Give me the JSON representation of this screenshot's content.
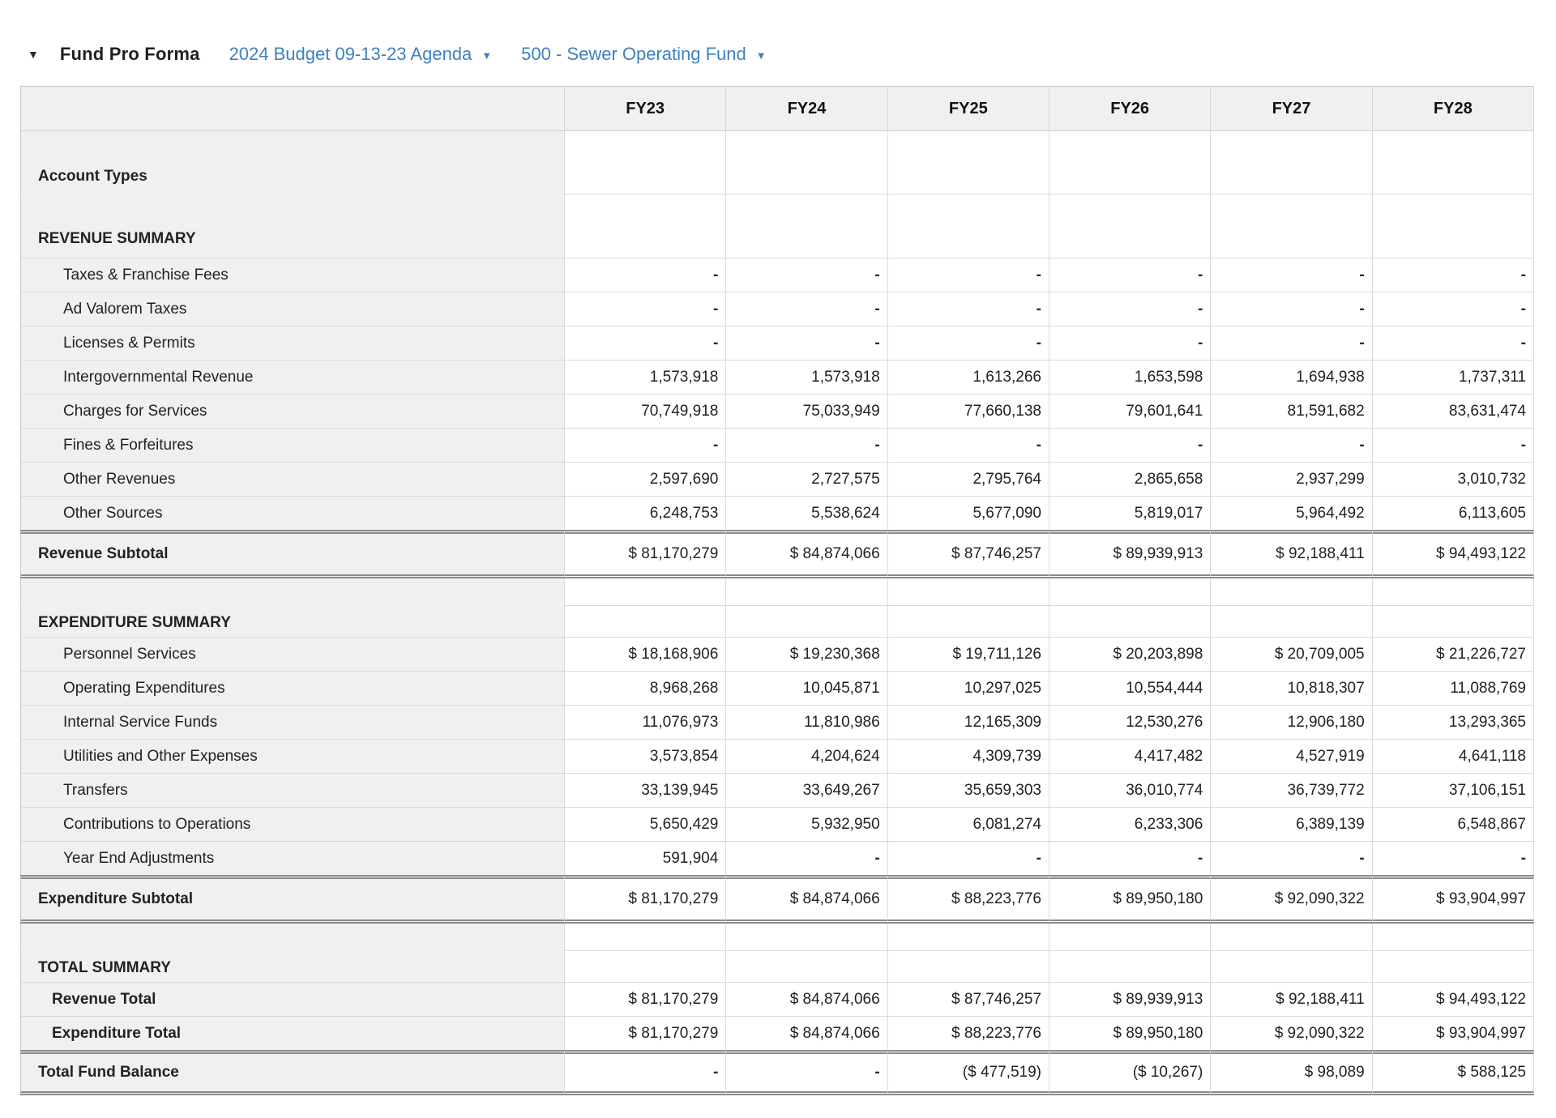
{
  "page": {
    "title": "Fund Pro Forma",
    "collapse_icon": "caret-down",
    "budget_dropdown": {
      "label": "2024 Budget 09-13-23 Agenda",
      "icon": "caret-down"
    },
    "fund_dropdown": {
      "label": "500 - Sewer Operating Fund",
      "icon": "caret-down"
    }
  },
  "colors": {
    "link_blue": "#4080bf",
    "label_column_bg": "#f0f0f0",
    "grid_line": "#dadada",
    "double_rule": "#8a8a8a"
  },
  "table": {
    "columns": [
      "FY23",
      "FY24",
      "FY25",
      "FY26",
      "FY27",
      "FY28"
    ],
    "rows": [
      {
        "type": "label-tall",
        "label": "Account Types",
        "values": [
          "",
          "",
          "",
          "",
          "",
          ""
        ]
      },
      {
        "type": "section-tall",
        "label": "REVENUE SUMMARY",
        "values": [
          "",
          "",
          "",
          "",
          "",
          ""
        ]
      },
      {
        "type": "item",
        "label": "Taxes & Franchise Fees",
        "values": [
          "-",
          "-",
          "-",
          "-",
          "-",
          "-"
        ]
      },
      {
        "type": "item",
        "label": "Ad Valorem Taxes",
        "values": [
          "-",
          "-",
          "-",
          "-",
          "-",
          "-"
        ]
      },
      {
        "type": "item",
        "label": "Licenses & Permits",
        "values": [
          "-",
          "-",
          "-",
          "-",
          "-",
          "-"
        ]
      },
      {
        "type": "item",
        "label": "Intergovernmental Revenue",
        "values": [
          "1,573,918",
          "1,573,918",
          "1,613,266",
          "1,653,598",
          "1,694,938",
          "1,737,311"
        ]
      },
      {
        "type": "item",
        "label": "Charges for Services",
        "values": [
          "70,749,918",
          "75,033,949",
          "77,660,138",
          "79,601,641",
          "81,591,682",
          "83,631,474"
        ]
      },
      {
        "type": "item",
        "label": "Fines & Forfeitures",
        "values": [
          "-",
          "-",
          "-",
          "-",
          "-",
          "-"
        ]
      },
      {
        "type": "item",
        "label": "Other Revenues",
        "values": [
          "2,597,690",
          "2,727,575",
          "2,795,764",
          "2,865,658",
          "2,937,299",
          "3,010,732"
        ]
      },
      {
        "type": "item",
        "label": "Other Sources",
        "values": [
          "6,248,753",
          "5,538,624",
          "5,677,090",
          "5,819,017",
          "5,964,492",
          "6,113,605"
        ]
      },
      {
        "type": "subtotal",
        "label": "Revenue Subtotal",
        "values": [
          "$ 81,170,279",
          "$ 84,874,066",
          "$ 87,746,257",
          "$ 89,939,913",
          "$ 92,188,411",
          "$ 94,493,122"
        ]
      },
      {
        "type": "spacer",
        "label": "",
        "values": [
          "",
          "",
          "",
          "",
          "",
          ""
        ]
      },
      {
        "type": "section",
        "label": "EXPENDITURE SUMMARY",
        "values": [
          "",
          "",
          "",
          "",
          "",
          ""
        ]
      },
      {
        "type": "item",
        "label": "Personnel Services",
        "values": [
          "$ 18,168,906",
          "$ 19,230,368",
          "$ 19,711,126",
          "$ 20,203,898",
          "$ 20,709,005",
          "$ 21,226,727"
        ]
      },
      {
        "type": "item",
        "label": "Operating Expenditures",
        "values": [
          "8,968,268",
          "10,045,871",
          "10,297,025",
          "10,554,444",
          "10,818,307",
          "11,088,769"
        ]
      },
      {
        "type": "item",
        "label": "Internal Service Funds",
        "values": [
          "11,076,973",
          "11,810,986",
          "12,165,309",
          "12,530,276",
          "12,906,180",
          "13,293,365"
        ]
      },
      {
        "type": "item",
        "label": "Utilities and Other Expenses",
        "values": [
          "3,573,854",
          "4,204,624",
          "4,309,739",
          "4,417,482",
          "4,527,919",
          "4,641,118"
        ]
      },
      {
        "type": "item",
        "label": "Transfers",
        "values": [
          "33,139,945",
          "33,649,267",
          "35,659,303",
          "36,010,774",
          "36,739,772",
          "37,106,151"
        ]
      },
      {
        "type": "item",
        "label": "Contributions to Operations",
        "values": [
          "5,650,429",
          "5,932,950",
          "6,081,274",
          "6,233,306",
          "6,389,139",
          "6,548,867"
        ]
      },
      {
        "type": "item",
        "label": "Year End Adjustments",
        "values": [
          "591,904",
          "-",
          "-",
          "-",
          "-",
          "-"
        ]
      },
      {
        "type": "subtotal",
        "label": "Expenditure Subtotal",
        "values": [
          "$ 81,170,279",
          "$ 84,874,066",
          "$ 88,223,776",
          "$ 89,950,180",
          "$ 92,090,322",
          "$ 93,904,997"
        ]
      },
      {
        "type": "spacer",
        "label": "",
        "values": [
          "",
          "",
          "",
          "",
          "",
          ""
        ]
      },
      {
        "type": "section",
        "label": "TOTAL SUMMARY",
        "values": [
          "",
          "",
          "",
          "",
          "",
          ""
        ]
      },
      {
        "type": "total",
        "label": "Revenue Total",
        "values": [
          "$ 81,170,279",
          "$ 84,874,066",
          "$ 87,746,257",
          "$ 89,939,913",
          "$ 92,188,411",
          "$ 94,493,122"
        ]
      },
      {
        "type": "total",
        "label": "Expenditure Total",
        "values": [
          "$ 81,170,279",
          "$ 84,874,066",
          "$ 88,223,776",
          "$ 89,950,180",
          "$ 92,090,322",
          "$ 93,904,997"
        ]
      },
      {
        "type": "grand",
        "label": "Total Fund Balance",
        "values": [
          "-",
          "-",
          "($ 477,519)",
          "($ 10,267)",
          "$ 98,089",
          "$ 588,125"
        ]
      }
    ]
  }
}
